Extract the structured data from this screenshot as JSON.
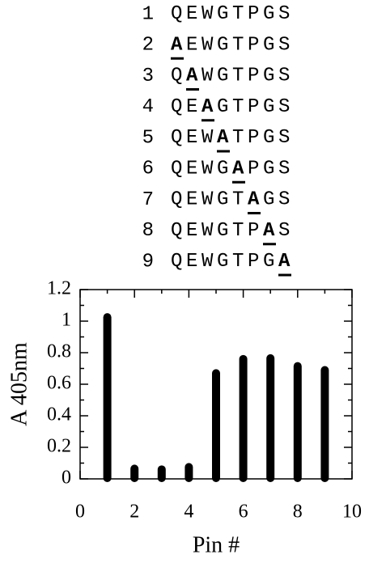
{
  "sequences": [
    {
      "number": "1",
      "sequence": "QEWGTPGS"
    },
    {
      "number": "2",
      "mutant": "A",
      "suffix": "EWGTPGS"
    },
    {
      "number": "3",
      "prefix": "Q",
      "mutant": "A",
      "suffix": "WGTPGS"
    },
    {
      "number": "4",
      "prefix": "QE",
      "mutant": "A",
      "suffix": "GTPGS"
    },
    {
      "number": "5",
      "prefix": "QEW",
      "mutant": "A",
      "suffix": "TPGS"
    },
    {
      "number": "6",
      "prefix": "QEWG",
      "mutant": "A",
      "suffix": "PGS"
    },
    {
      "number": "7",
      "prefix": "QEWGT",
      "mutant": "A",
      "suffix": "GS"
    },
    {
      "number": "8",
      "prefix": "QEWGTP",
      "mutant": "A",
      "suffix": "S"
    },
    {
      "number": "9",
      "prefix": "QEWGTPG",
      "mutant": "A"
    }
  ],
  "chart_data": {
    "type": "bar",
    "x_label": "Pin #",
    "y_label": "A 405nm",
    "x": [
      1,
      2,
      3,
      4,
      5,
      6,
      7,
      8,
      9
    ],
    "values": [
      1.03,
      0.07,
      0.065,
      0.08,
      0.675,
      0.765,
      0.77,
      0.72,
      0.695
    ],
    "color": "#000000",
    "xlim": [
      0,
      10
    ],
    "xticks": [
      0,
      2,
      4,
      6,
      8,
      10
    ],
    "x_minor_ticks": [
      1,
      3,
      5,
      7,
      9
    ],
    "ylim": [
      0,
      1.2
    ],
    "yticks": [
      0,
      0.2,
      0.4,
      0.6,
      0.8,
      1,
      1.2
    ],
    "y_minor_ticks": [
      0.1,
      0.3,
      0.5,
      0.7,
      0.9,
      1.1
    ]
  }
}
